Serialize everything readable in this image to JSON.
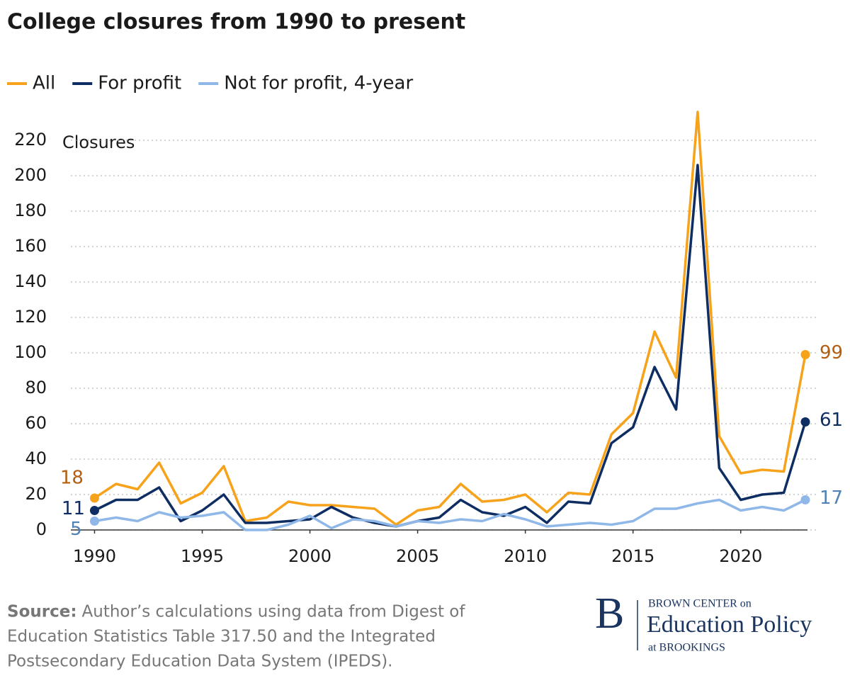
{
  "chart_data": {
    "type": "line",
    "title": "College closures from 1990 to present",
    "y_label": "Closures",
    "x": [
      1990,
      1991,
      1992,
      1993,
      1994,
      1995,
      1996,
      1997,
      1998,
      1999,
      2000,
      2001,
      2002,
      2003,
      2004,
      2005,
      2006,
      2007,
      2008,
      2009,
      2010,
      2011,
      2012,
      2013,
      2014,
      2015,
      2016,
      2017,
      2018,
      2019,
      2020,
      2021,
      2022,
      2023
    ],
    "series": [
      {
        "name": "All",
        "color": "#f7a21b",
        "label_color": "#b35f12",
        "values": [
          18,
          26,
          23,
          38,
          15,
          21,
          36,
          5,
          7,
          16,
          14,
          14,
          13,
          12,
          3,
          11,
          13,
          26,
          16,
          17,
          20,
          10,
          21,
          20,
          54,
          66,
          112,
          86,
          236,
          53,
          32,
          34,
          33,
          99
        ]
      },
      {
        "name": "For profit",
        "color": "#0e2d63",
        "label_color": "#0e2d63",
        "values": [
          11,
          17,
          17,
          24,
          5,
          11,
          20,
          4,
          4,
          5,
          6,
          13,
          7,
          4,
          2,
          5,
          7,
          17,
          10,
          8,
          13,
          4,
          16,
          15,
          49,
          58,
          92,
          68,
          206,
          35,
          17,
          20,
          21,
          61
        ]
      },
      {
        "name": "Not for profit, 4-year",
        "color": "#8fb8e8",
        "label_color": "#4f82b5",
        "values": [
          5,
          7,
          5,
          10,
          7,
          8,
          10,
          0,
          0,
          3,
          8,
          1,
          6,
          5,
          2,
          5,
          4,
          6,
          5,
          9,
          6,
          2,
          3,
          4,
          3,
          5,
          12,
          12,
          15,
          17,
          11,
          13,
          11,
          17
        ]
      }
    ],
    "xlim": [
      1988.9,
      2023.1
    ],
    "xticks": [
      1990,
      1995,
      2000,
      2005,
      2010,
      2015,
      2020
    ],
    "ylim": [
      0,
      240
    ],
    "yticks": [
      0,
      20,
      40,
      60,
      80,
      100,
      120,
      140,
      160,
      180,
      200,
      220
    ],
    "grid": true
  },
  "source": {
    "label": "Source:",
    "lines": [
      "Author’s calculations using data from Digest of",
      "Education Statistics Table 317.50 and the Integrated",
      "Postsecondary Education Data System (IPEDS)."
    ]
  },
  "logo": {
    "letter": "B",
    "top": "BROWN CENTER on",
    "main": "Education Policy",
    "bottom": "at BROOKINGS"
  }
}
